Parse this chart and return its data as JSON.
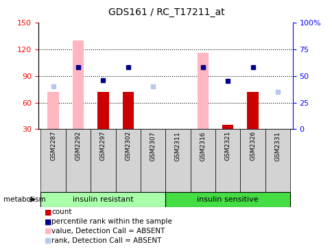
{
  "title": "GDS161 / RC_T17211_at",
  "samples": [
    "GSM2287",
    "GSM2292",
    "GSM2297",
    "GSM2302",
    "GSM2307",
    "GSM2311",
    "GSM2316",
    "GSM2321",
    "GSM2326",
    "GSM2331"
  ],
  "left_ylim": [
    30,
    150
  ],
  "left_yticks": [
    30,
    60,
    90,
    120,
    150
  ],
  "right_ylim": [
    0,
    100
  ],
  "right_yticks": [
    0,
    25,
    50,
    75,
    100
  ],
  "right_yticklabels": [
    "0",
    "25",
    "50",
    "75",
    "100%"
  ],
  "pink_bars": [
    72,
    130,
    null,
    null,
    null,
    null,
    116,
    null,
    null,
    null
  ],
  "red_bars": [
    null,
    null,
    72,
    72,
    30,
    null,
    null,
    35,
    72,
    30
  ],
  "blue_squares": [
    null,
    100,
    85,
    100,
    null,
    null,
    100,
    84,
    100,
    null
  ],
  "light_blue_squares": [
    78,
    null,
    null,
    null,
    78,
    null,
    null,
    null,
    null,
    72
  ],
  "grid_lines": [
    60,
    90,
    120
  ],
  "group1_label": "insulin resistant",
  "group1_color": "#aaffaa",
  "group1_range": [
    0,
    4
  ],
  "group2_label": "insulin sensitive",
  "group2_color": "#44dd44",
  "group2_range": [
    5,
    9
  ],
  "pink_color": "#FFB6C1",
  "red_color": "#CC0000",
  "blue_color": "#00008B",
  "lblue_color": "#B8C8E8",
  "legend": [
    {
      "color": "#CC0000",
      "label": "count"
    },
    {
      "color": "#00008B",
      "label": "percentile rank within the sample"
    },
    {
      "color": "#FFB6C1",
      "label": "value, Detection Call = ABSENT"
    },
    {
      "color": "#B8C8E8",
      "label": "rank, Detection Call = ABSENT"
    }
  ],
  "metabolism_label": "metabolism"
}
